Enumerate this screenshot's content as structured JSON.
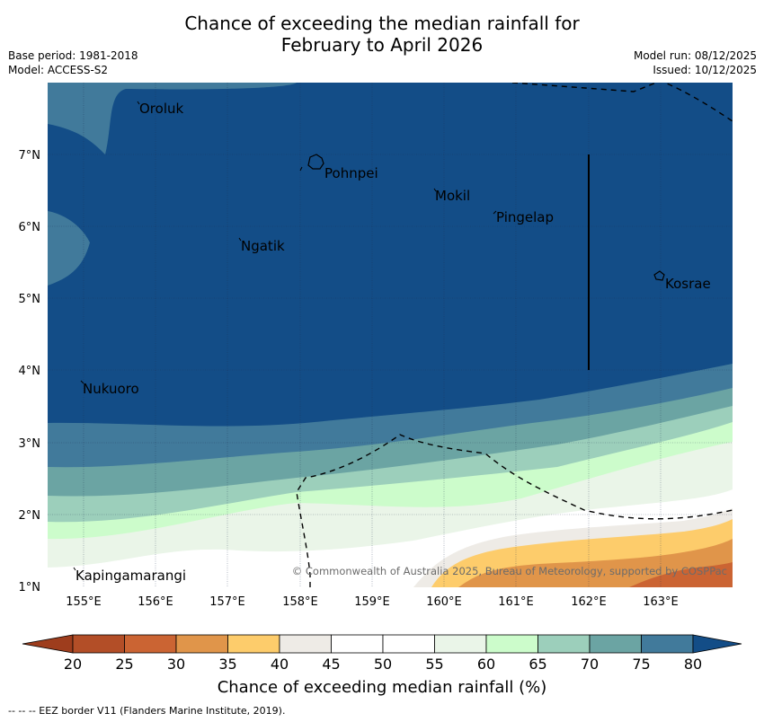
{
  "title_line1": "Chance of exceeding the median rainfall for",
  "title_line2": "February to April 2026",
  "base_period": "Base period: 1981-2018",
  "model": "Model: ACCESS-S2",
  "model_run": "Model run: 08/12/2025",
  "issued": "Issued: 10/12/2025",
  "copyright": "© Commonwealth of Australia 2025, Bureau of Meteorology, supported by COSPPac",
  "map": {
    "lon_ticks": [
      "155°E",
      "156°E",
      "157°E",
      "158°E",
      "159°E",
      "160°E",
      "161°E",
      "162°E",
      "163°E"
    ],
    "lat_ticks": [
      "1°N",
      "2°N",
      "3°N",
      "4°N",
      "5°N",
      "6°N",
      "7°N"
    ],
    "places": [
      "Oroluk",
      "Pohnpei",
      "Mokil",
      "Pingelap",
      "Ngatik",
      "Kosrae",
      "Nukuoro",
      "Kapingamarangi"
    ]
  },
  "colorbar": {
    "ticks": [
      "20",
      "25",
      "30",
      "35",
      "40",
      "45",
      "50",
      "55",
      "60",
      "65",
      "70",
      "75",
      "80"
    ],
    "label": "Chance of exceeding median rainfall (%)",
    "colors": {
      "lt20": "#9e3d1d",
      "c20_25": "#b34e27",
      "c25_30": "#cb6433",
      "c30_35": "#e0954a",
      "c35_40": "#fdcc6b",
      "c40_45": "#eeebe6",
      "c45_50": "#ffffff",
      "c50_55": "#ffffff",
      "c55_60": "#eaf5e8",
      "c60_65": "#ccfccb",
      "c65_70": "#9ccfbb",
      "c70_75": "#6ba4a3",
      "c75_80": "#417a9b",
      "gt80": "#134d87"
    }
  },
  "footnote": "-- -- -- EEZ border V11 (Flanders Marine Institute, 2019)."
}
